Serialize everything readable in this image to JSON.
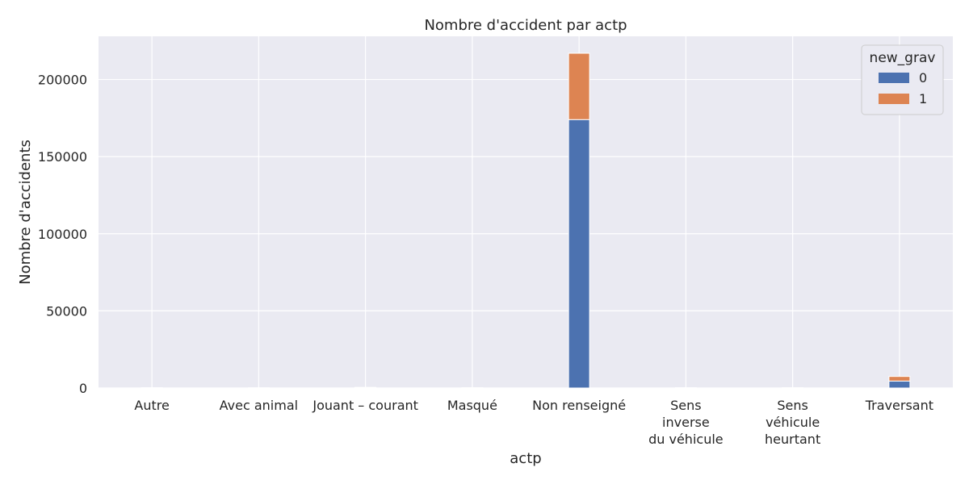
{
  "chart_data": {
    "type": "bar",
    "stacked": true,
    "title": "Nombre d'accident par actp",
    "xlabel": "actp",
    "ylabel": "Nombre d'accidents",
    "categories": [
      [
        "Autre"
      ],
      [
        "Avec animal"
      ],
      [
        "Jouant – courant"
      ],
      [
        "Masqué"
      ],
      [
        "Non renseigné"
      ],
      [
        "Sens",
        "inverse",
        "du véhicule"
      ],
      [
        "Sens",
        "véhicule",
        "heurtant"
      ],
      [
        "Traversant"
      ]
    ],
    "series": [
      {
        "name": "0",
        "color": "#4c72b0",
        "values": [
          150,
          100,
          300,
          120,
          174000,
          150,
          120,
          4500
        ]
      },
      {
        "name": "1",
        "color": "#dd8452",
        "values": [
          60,
          40,
          100,
          40,
          43000,
          60,
          40,
          3000
        ]
      }
    ],
    "ylim": [
      0,
      228000
    ],
    "yticks": [
      0,
      50000,
      100000,
      150000,
      200000
    ],
    "grid": true,
    "legend": {
      "title": "new_grav",
      "placement": "top-right"
    },
    "colors": {
      "background": "#eaeaf2",
      "grid": "#ffffff",
      "bar_edge": "#ffffff"
    }
  }
}
